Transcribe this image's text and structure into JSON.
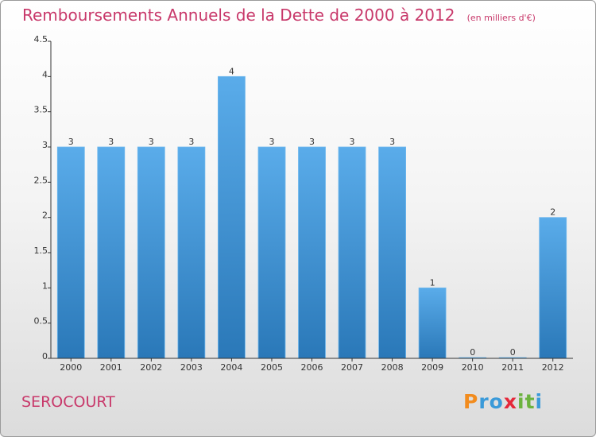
{
  "chart_data": {
    "type": "bar",
    "title": "Remboursements Annuels de la Dette de 2000 à 2012",
    "subtitle": "(en milliers d'€)",
    "categories": [
      "2000",
      "2001",
      "2002",
      "2003",
      "2004",
      "2005",
      "2006",
      "2007",
      "2008",
      "2009",
      "2010",
      "2011",
      "2012"
    ],
    "values": [
      3,
      3,
      3,
      3,
      4,
      3,
      3,
      3,
      3,
      1,
      0,
      0,
      2
    ],
    "value_labels": [
      "3",
      "3",
      "3",
      "3",
      "4",
      "3",
      "3",
      "3",
      "3",
      "1",
      "0",
      "0",
      "2"
    ],
    "ylim": [
      0,
      4.5
    ],
    "yticks": [
      0,
      0.5,
      1,
      1.5,
      2,
      2.5,
      3,
      3.5,
      4,
      4.5
    ],
    "ytick_labels": [
      "0",
      "0.5",
      "1",
      "1.5",
      "2",
      "2.5",
      "3",
      "3.5",
      "4",
      "4.5"
    ],
    "grid": false,
    "bar_color": "#3f95d6"
  },
  "place": "SEROCOURT",
  "logo": {
    "letters": [
      "P",
      "r",
      "o",
      "x",
      "i",
      "t",
      "i"
    ],
    "colors": [
      "#f28c1e",
      "#3a9ad9",
      "#3a9ad9",
      "#e5283a",
      "#6cb33f",
      "#6cb33f",
      "#3a9ad9"
    ]
  }
}
